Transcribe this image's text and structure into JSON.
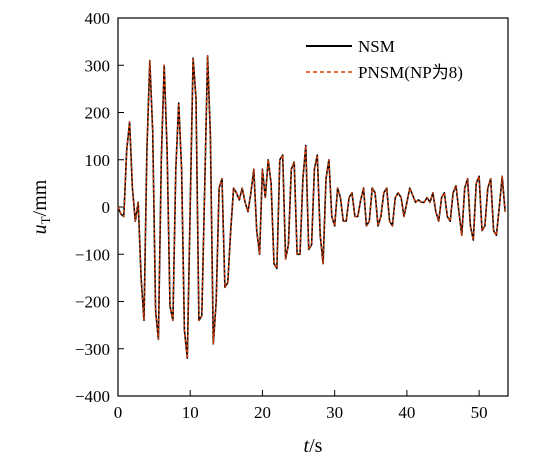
{
  "chart_data": {
    "type": "line",
    "xlabel": {
      "italic": "t",
      "rest": "/s"
    },
    "ylabel": {
      "italic": "u",
      "sub": "T",
      "rest": "/mm"
    },
    "xlim": [
      0,
      54
    ],
    "ylim": [
      -400,
      400
    ],
    "xticks": [
      0,
      10,
      20,
      30,
      40,
      50
    ],
    "yticks": [
      400,
      300,
      200,
      100,
      0,
      -100,
      -200,
      -300,
      -400
    ],
    "ytick_labels": [
      "400",
      "300",
      "200",
      "100",
      "0",
      "−100",
      "−200",
      "−300",
      "−400"
    ],
    "grid": false,
    "legend_position": "top-right",
    "series": [
      {
        "name": "NSM",
        "style": "solid",
        "color": "#000000"
      },
      {
        "name": "PNSM(NP为8)",
        "style": "dashed",
        "color": "#e03a00"
      }
    ],
    "x": [
      0,
      0.4,
      0.8,
      1.2,
      1.6,
      2.0,
      2.4,
      2.8,
      3.2,
      3.6,
      4.0,
      4.4,
      4.8,
      5.2,
      5.6,
      6.0,
      6.4,
      6.8,
      7.2,
      7.6,
      8.0,
      8.4,
      8.8,
      9.2,
      9.6,
      10.0,
      10.4,
      10.8,
      11.2,
      11.6,
      12.0,
      12.4,
      12.8,
      13.2,
      13.6,
      14.0,
      14.4,
      14.8,
      15.2,
      15.6,
      16.0,
      16.4,
      16.8,
      17.2,
      17.6,
      18.0,
      18.4,
      18.8,
      19.2,
      19.6,
      20.0,
      20.4,
      20.8,
      21.2,
      21.6,
      22.0,
      22.4,
      22.8,
      23.2,
      23.6,
      24.0,
      24.4,
      24.8,
      25.2,
      25.6,
      26.0,
      26.4,
      26.8,
      27.2,
      27.6,
      28.0,
      28.4,
      28.8,
      29.2,
      29.6,
      30.0,
      30.4,
      30.8,
      31.2,
      31.6,
      32.0,
      32.4,
      32.8,
      33.2,
      33.6,
      34.0,
      34.4,
      34.8,
      35.2,
      35.6,
      36.0,
      36.4,
      36.8,
      37.2,
      37.6,
      38.0,
      38.4,
      38.8,
      39.2,
      39.6,
      40.0,
      40.4,
      40.8,
      41.2,
      41.6,
      42.0,
      42.4,
      42.8,
      43.2,
      43.6,
      44.0,
      44.4,
      44.8,
      45.2,
      45.6,
      46.0,
      46.4,
      46.8,
      47.2,
      47.6,
      48.0,
      48.4,
      48.8,
      49.2,
      49.6,
      50.0,
      50.4,
      50.8,
      51.2,
      51.6,
      52.0,
      52.4,
      52.8,
      53.2,
      53.6
    ],
    "y": [
      0,
      -15,
      -20,
      120,
      180,
      40,
      -30,
      10,
      -150,
      -240,
      120,
      310,
      160,
      -220,
      -280,
      100,
      300,
      120,
      -210,
      -240,
      80,
      220,
      80,
      -260,
      -320,
      0,
      315,
      230,
      -240,
      -230,
      40,
      320,
      150,
      -290,
      -200,
      40,
      60,
      -170,
      -160,
      -50,
      40,
      30,
      15,
      40,
      10,
      -10,
      30,
      80,
      -50,
      -100,
      80,
      20,
      100,
      50,
      -120,
      -130,
      100,
      110,
      -110,
      -80,
      80,
      95,
      -100,
      -100,
      60,
      130,
      -90,
      -80,
      80,
      110,
      -60,
      -120,
      60,
      100,
      -20,
      -40,
      40,
      20,
      -30,
      -30,
      20,
      30,
      -20,
      -20,
      15,
      40,
      -40,
      -30,
      40,
      30,
      -40,
      -20,
      30,
      40,
      -30,
      -40,
      20,
      30,
      20,
      -20,
      10,
      40,
      25,
      10,
      15,
      10,
      10,
      20,
      10,
      30,
      -10,
      -30,
      20,
      30,
      -20,
      -30,
      30,
      45,
      -10,
      -60,
      40,
      60,
      -40,
      -70,
      50,
      65,
      -50,
      -40,
      40,
      60,
      -50,
      -60,
      0,
      65,
      -10
    ]
  }
}
